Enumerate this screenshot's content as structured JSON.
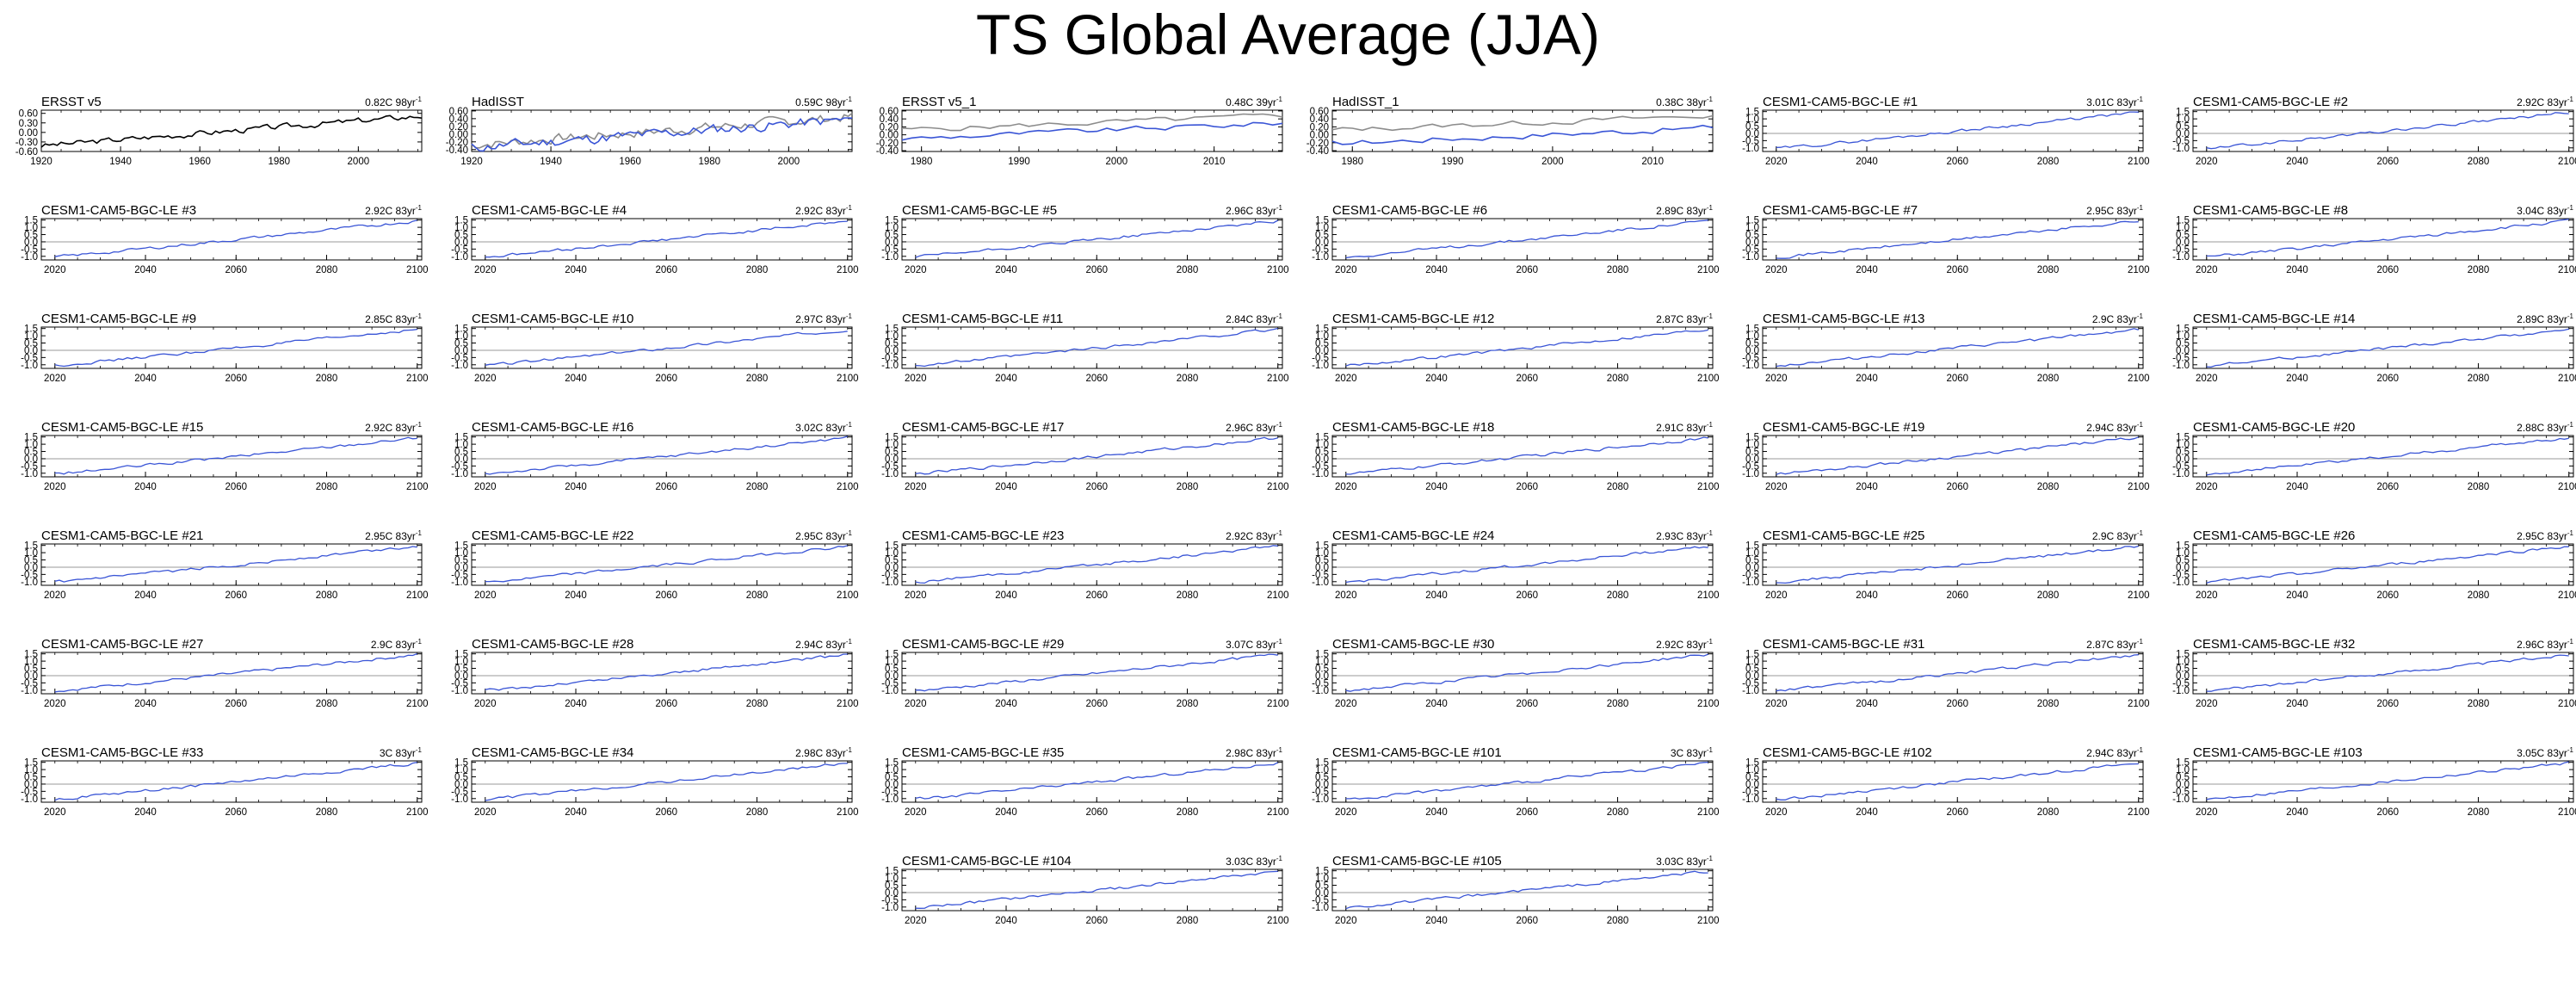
{
  "page_title": "TS Global Average (JJA)",
  "colors": {
    "model": "#3a55d6",
    "obs": "#000000",
    "obs_ref": "#8c8c8c",
    "zero_line": "#999999"
  },
  "chart_data": [
    {
      "type": "line",
      "title": "ERSST v5",
      "stat": "0.82C 98yr",
      "stat_exp": "-1",
      "xlim": [
        1920,
        2016
      ],
      "ylim": [
        -0.6,
        0.7
      ],
      "xticks": [
        "1920",
        "1940",
        "1960",
        "1980",
        "2000"
      ],
      "yticks": [
        "0.60",
        "0.30",
        "0.00",
        "-0.30",
        "-0.60"
      ],
      "zero_line": false,
      "series": [
        {
          "x_start": 1920,
          "x_end": 2016,
          "trend": [
            -0.42,
            0.52
          ],
          "amp": 0.08,
          "seed": 3
        }
      ]
    },
    {
      "type": "line",
      "title": "HadISST",
      "stat": "0.59C 98yr",
      "stat_exp": "-1",
      "xlim": [
        1920,
        2016
      ],
      "ylim": [
        -0.45,
        0.62
      ],
      "xticks": [
        "1920",
        "1940",
        "1960",
        "1980",
        "2000"
      ],
      "yticks": [
        "0.60",
        "0.40",
        "0.20",
        "0.00",
        "-0.20",
        "-0.40"
      ],
      "zero_line": false,
      "series": [
        {
          "x_start": 1920,
          "x_end": 2016,
          "trend": [
            -0.28,
            0.45
          ],
          "amp": 0.11,
          "seed": 7
        },
        {
          "x_start": 1920,
          "x_end": 2016,
          "trend": [
            -0.35,
            0.38
          ],
          "amp": 0.12,
          "seed": 11
        }
      ]
    },
    {
      "type": "line",
      "title": "ERSST v5_1",
      "stat": "0.48C 39yr",
      "stat_exp": "-1",
      "xlim": [
        1978,
        2017
      ],
      "ylim": [
        -0.42,
        0.62
      ],
      "xticks": [
        "1980",
        "1990",
        "2000",
        "2010"
      ],
      "yticks": [
        "0.60",
        "0.40",
        "0.20",
        "0.00",
        "-0.20",
        "-0.40"
      ],
      "zero_line": false,
      "series": [
        {
          "x_start": 1978,
          "x_end": 2017,
          "trend": [
            0.12,
            0.48
          ],
          "amp": 0.06,
          "seed": 5
        },
        {
          "x_start": 1978,
          "x_end": 2017,
          "trend": [
            -0.1,
            0.3
          ],
          "amp": 0.06,
          "seed": 9
        }
      ]
    },
    {
      "type": "line",
      "title": "HadISST_1",
      "stat": "0.38C 38yr",
      "stat_exp": "-1",
      "xlim": [
        1978,
        2016
      ],
      "ylim": [
        -0.42,
        0.62
      ],
      "xticks": [
        "1980",
        "1990",
        "2000",
        "2010"
      ],
      "yticks": [
        "0.60",
        "0.40",
        "0.20",
        "0.00",
        "-0.20",
        "-0.40"
      ],
      "zero_line": false,
      "series": [
        {
          "x_start": 1978,
          "x_end": 2016,
          "trend": [
            0.12,
            0.48
          ],
          "amp": 0.06,
          "seed": 13
        },
        {
          "x_start": 1978,
          "x_end": 2016,
          "trend": [
            -0.22,
            0.18
          ],
          "amp": 0.07,
          "seed": 17
        }
      ]
    },
    {
      "type": "line",
      "title": "CESM1-CAM5-BGC-LE #1",
      "stat": "3.01C 83yr",
      "stat_exp": "-1"
    },
    {
      "type": "line",
      "title": "CESM1-CAM5-BGC-LE #2",
      "stat": "2.92C 83yr",
      "stat_exp": "-1"
    },
    {
      "type": "line",
      "title": "CESM1-CAM5-BGC-LE #3",
      "stat": "2.92C 83yr",
      "stat_exp": "-1"
    },
    {
      "type": "line",
      "title": "CESM1-CAM5-BGC-LE #4",
      "stat": "2.92C 83yr",
      "stat_exp": "-1"
    },
    {
      "type": "line",
      "title": "CESM1-CAM5-BGC-LE #5",
      "stat": "2.96C 83yr",
      "stat_exp": "-1"
    },
    {
      "type": "line",
      "title": "CESM1-CAM5-BGC-LE #6",
      "stat": "2.89C 83yr",
      "stat_exp": "-1"
    },
    {
      "type": "line",
      "title": "CESM1-CAM5-BGC-LE #7",
      "stat": "2.95C 83yr",
      "stat_exp": "-1"
    },
    {
      "type": "line",
      "title": "CESM1-CAM5-BGC-LE #8",
      "stat": "3.04C 83yr",
      "stat_exp": "-1"
    },
    {
      "type": "line",
      "title": "CESM1-CAM5-BGC-LE #9",
      "stat": "2.85C 83yr",
      "stat_exp": "-1"
    },
    {
      "type": "line",
      "title": "CESM1-CAM5-BGC-LE #10",
      "stat": "2.97C 83yr",
      "stat_exp": "-1"
    },
    {
      "type": "line",
      "title": "CESM1-CAM5-BGC-LE #11",
      "stat": "2.84C 83yr",
      "stat_exp": "-1"
    },
    {
      "type": "line",
      "title": "CESM1-CAM5-BGC-LE #12",
      "stat": "2.87C 83yr",
      "stat_exp": "-1"
    },
    {
      "type": "line",
      "title": "CESM1-CAM5-BGC-LE #13",
      "stat": "2.9C 83yr",
      "stat_exp": "-1"
    },
    {
      "type": "line",
      "title": "CESM1-CAM5-BGC-LE #14",
      "stat": "2.89C 83yr",
      "stat_exp": "-1"
    },
    {
      "type": "line",
      "title": "CESM1-CAM5-BGC-LE #15",
      "stat": "2.92C 83yr",
      "stat_exp": "-1"
    },
    {
      "type": "line",
      "title": "CESM1-CAM5-BGC-LE #16",
      "stat": "3.02C 83yr",
      "stat_exp": "-1"
    },
    {
      "type": "line",
      "title": "CESM1-CAM5-BGC-LE #17",
      "stat": "2.96C 83yr",
      "stat_exp": "-1"
    },
    {
      "type": "line",
      "title": "CESM1-CAM5-BGC-LE #18",
      "stat": "2.91C 83yr",
      "stat_exp": "-1"
    },
    {
      "type": "line",
      "title": "CESM1-CAM5-BGC-LE #19",
      "stat": "2.94C 83yr",
      "stat_exp": "-1"
    },
    {
      "type": "line",
      "title": "CESM1-CAM5-BGC-LE #20",
      "stat": "2.88C 83yr",
      "stat_exp": "-1"
    },
    {
      "type": "line",
      "title": "CESM1-CAM5-BGC-LE #21",
      "stat": "2.95C 83yr",
      "stat_exp": "-1"
    },
    {
      "type": "line",
      "title": "CESM1-CAM5-BGC-LE #22",
      "stat": "2.95C 83yr",
      "stat_exp": "-1"
    },
    {
      "type": "line",
      "title": "CESM1-CAM5-BGC-LE #23",
      "stat": "2.92C 83yr",
      "stat_exp": "-1"
    },
    {
      "type": "line",
      "title": "CESM1-CAM5-BGC-LE #24",
      "stat": "2.93C 83yr",
      "stat_exp": "-1"
    },
    {
      "type": "line",
      "title": "CESM1-CAM5-BGC-LE #25",
      "stat": "2.9C 83yr",
      "stat_exp": "-1"
    },
    {
      "type": "line",
      "title": "CESM1-CAM5-BGC-LE #26",
      "stat": "2.95C 83yr",
      "stat_exp": "-1"
    },
    {
      "type": "line",
      "title": "CESM1-CAM5-BGC-LE #27",
      "stat": "2.9C 83yr",
      "stat_exp": "-1"
    },
    {
      "type": "line",
      "title": "CESM1-CAM5-BGC-LE #28",
      "stat": "2.94C 83yr",
      "stat_exp": "-1"
    },
    {
      "type": "line",
      "title": "CESM1-CAM5-BGC-LE #29",
      "stat": "3.07C 83yr",
      "stat_exp": "-1"
    },
    {
      "type": "line",
      "title": "CESM1-CAM5-BGC-LE #30",
      "stat": "2.92C 83yr",
      "stat_exp": "-1"
    },
    {
      "type": "line",
      "title": "CESM1-CAM5-BGC-LE #31",
      "stat": "2.87C 83yr",
      "stat_exp": "-1"
    },
    {
      "type": "line",
      "title": "CESM1-CAM5-BGC-LE #32",
      "stat": "2.96C 83yr",
      "stat_exp": "-1"
    },
    {
      "type": "line",
      "title": "CESM1-CAM5-BGC-LE #33",
      "stat": "3C 83yr",
      "stat_exp": "-1"
    },
    {
      "type": "line",
      "title": "CESM1-CAM5-BGC-LE #34",
      "stat": "2.98C 83yr",
      "stat_exp": "-1"
    },
    {
      "type": "line",
      "title": "CESM1-CAM5-BGC-LE #35",
      "stat": "2.98C 83yr",
      "stat_exp": "-1"
    },
    {
      "type": "line",
      "title": "CESM1-CAM5-BGC-LE #101",
      "stat": "3C 83yr",
      "stat_exp": "-1"
    },
    {
      "type": "line",
      "title": "CESM1-CAM5-BGC-LE #102",
      "stat": "2.94C 83yr",
      "stat_exp": "-1"
    },
    {
      "type": "line",
      "title": "CESM1-CAM5-BGC-LE #103",
      "stat": "3.05C 83yr",
      "stat_exp": "-1"
    },
    {
      "type": "line",
      "title": "CESM1-CAM5-BGC-LE #104",
      "stat": "3.03C 83yr",
      "stat_exp": "-1"
    },
    {
      "type": "line",
      "title": "CESM1-CAM5-BGC-LE #105",
      "stat": "3.03C 83yr",
      "stat_exp": "-1"
    }
  ],
  "model_defaults": {
    "xlim": [
      2017,
      2101
    ],
    "ylim": [
      -1.25,
      1.6
    ],
    "xticks": [
      "2020",
      "2040",
      "2060",
      "2080",
      "2100"
    ],
    "yticks": [
      "1.5",
      "1.0",
      "0.5",
      "0.0",
      "-0.5",
      "-1.0"
    ],
    "zero_line": true,
    "trend": [
      -1.05,
      1.45
    ],
    "amp": 0.09
  }
}
